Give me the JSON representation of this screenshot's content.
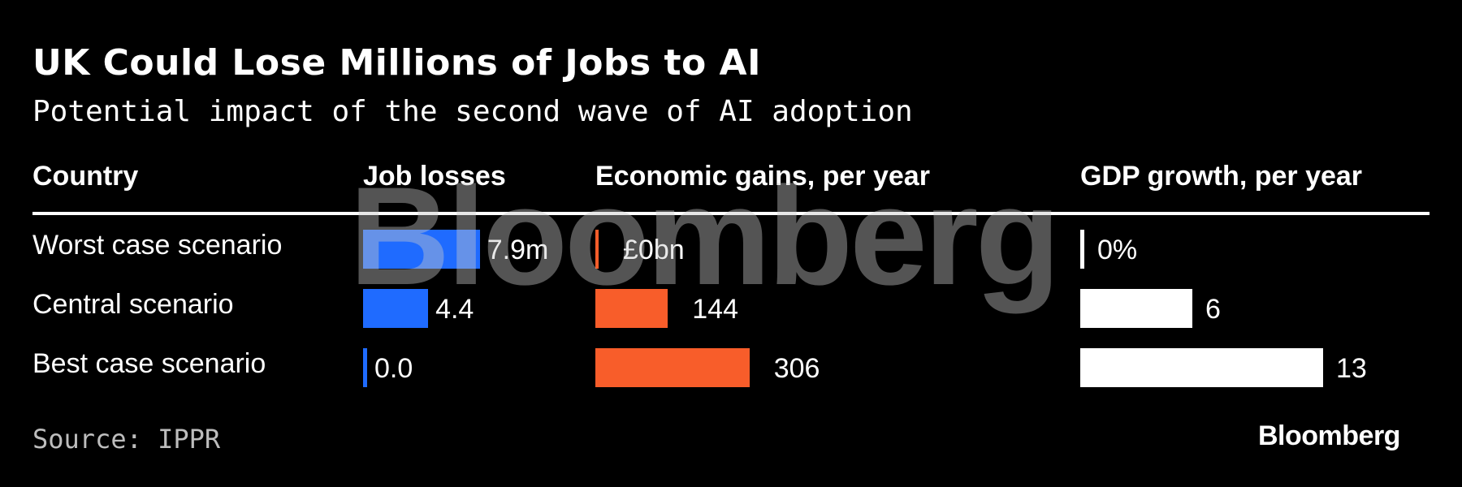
{
  "chart_data": {
    "type": "table",
    "title": "UK Could Lose Millions of Jobs to AI",
    "subtitle": "Potential impact of the second wave of AI adoption",
    "columns": [
      "Country",
      "Job losses",
      "Economic gains, per year",
      "GDP growth, per year"
    ],
    "categories": [
      "Worst case scenario",
      "Central scenario",
      "Best case scenario"
    ],
    "series": [
      {
        "name": "Job losses",
        "values": [
          7.9,
          4.4,
          0.0
        ],
        "labels": [
          "7.9m",
          "4.4",
          "0.0"
        ],
        "color": "#1f6bff"
      },
      {
        "name": "Economic gains, per year",
        "values": [
          0,
          144,
          306
        ],
        "labels": [
          "£0bn",
          "144",
          "306"
        ],
        "color": "#f85d2a"
      },
      {
        "name": "GDP growth, per year",
        "values": [
          0,
          6,
          13
        ],
        "labels": [
          "0%",
          "6",
          "13"
        ],
        "color": "#ffffff"
      }
    ],
    "source": "Source: IPPR"
  },
  "watermark": "Bloomberg",
  "logo": "Bloomberg"
}
